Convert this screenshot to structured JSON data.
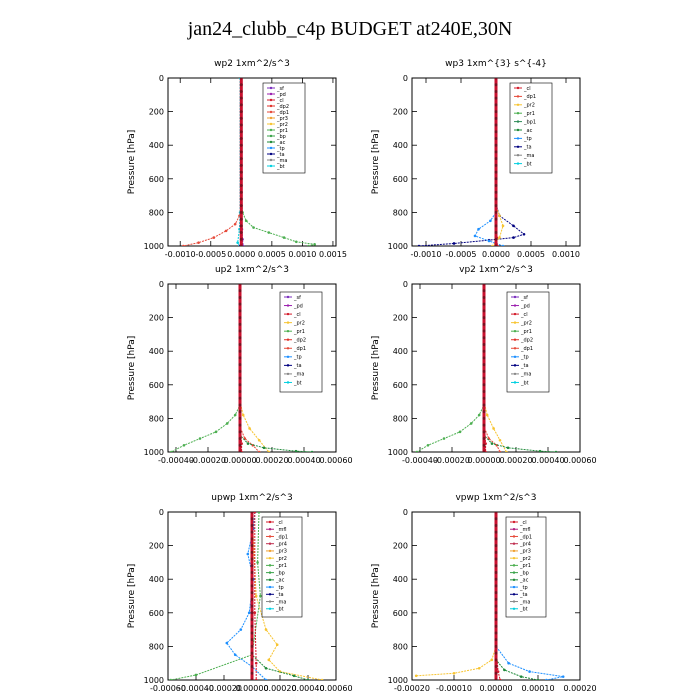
{
  "figure_title": "jan24_clubb_c4p  BUDGET at240E,30N",
  "colors": {
    "sf": "#7b2fbe",
    "pd": "#9b1fae",
    "cl": "#d41c2c",
    "dp2": "#e0322a",
    "dp1": "#e64a3a",
    "pr3": "#f0a030",
    "pr2": "#f7c431",
    "pr1": "#4caf50",
    "bp": "#3aa34a",
    "ac": "#1f8a3a",
    "tp": "#1e90ff",
    "ta": "#000080",
    "ma": "#888888",
    "bt": "#00d0e0",
    "mfl": "#b02080",
    "pr4": "#c03050",
    "bp1": "#2e8b57",
    "bt_line": "#c8102e"
  },
  "chart_data": [
    {
      "type": "line",
      "title": "wp2   1xm^2/s^3",
      "ylabel": "Pressure  [hPa]",
      "ylim": [
        1000,
        0
      ],
      "xlim": [
        -0.0012,
        0.00155
      ],
      "xticks": [
        "-0.0010",
        "-0.0005",
        "0.0000",
        "0.0005",
        "0.0010",
        "0.0015"
      ],
      "xtick_values": [
        -0.001,
        -0.0005,
        0.0,
        0.0005,
        0.001,
        0.0015
      ],
      "yticks": [
        0,
        200,
        400,
        600,
        800,
        1000
      ],
      "legend": [
        "_sf",
        "_pd",
        "_cl",
        "_dp2",
        "_dp1",
        "_pr3",
        "_pr2",
        "_pr1",
        "_bp",
        "_ac",
        "_tp",
        "_ta",
        "_ma",
        "_bt"
      ],
      "series": [
        {
          "key": "pr1",
          "x": [
            0,
            0,
            2e-05,
            8e-05,
            0.0002,
            0.00045,
            0.0007,
            0.0009,
            0.0012,
            0.0011
          ],
          "y": [
            0,
            700,
            800,
            850,
            890,
            920,
            950,
            975,
            990,
            1000
          ]
        },
        {
          "key": "dp1",
          "x": [
            0,
            0,
            -3e-05,
            -0.0001,
            -0.00025,
            -0.00045,
            -0.0007,
            -0.00095
          ],
          "y": [
            0,
            750,
            820,
            870,
            910,
            950,
            980,
            1000
          ]
        },
        {
          "key": "sf",
          "x": [
            0,
            0,
            1e-05,
            2e-05,
            3e-05
          ],
          "y": [
            0,
            800,
            900,
            960,
            1000
          ]
        },
        {
          "key": "bt",
          "x": [
            -2e-05,
            -2e-05,
            -3e-05,
            -6e-05,
            -3e-05
          ],
          "y": [
            0,
            800,
            900,
            980,
            1000
          ]
        },
        {
          "key": "ta",
          "x": [
            0,
            0,
            -2e-05
          ],
          "y": [
            0,
            950,
            1000
          ]
        }
      ]
    },
    {
      "type": "line",
      "title": "wp3   1xm^{3} s^{-4}",
      "ylabel": "Pressure  [hPa]",
      "ylim": [
        1000,
        0
      ],
      "xlim": [
        -0.0012,
        0.0012
      ],
      "xticks": [
        "-0.0010",
        "-0.0005",
        "0.0000",
        "0.0005",
        "0.0010"
      ],
      "xtick_values": [
        -0.001,
        -0.0005,
        0.0,
        0.0005,
        0.001
      ],
      "yticks": [
        0,
        200,
        400,
        600,
        800,
        1000
      ],
      "legend": [
        "_cl",
        "_dp1",
        "_pr2",
        "_pr1",
        "_bp1",
        "_ac",
        "_tp",
        "_ta",
        "_ma",
        "_bt"
      ],
      "series": [
        {
          "key": "ta",
          "x": [
            0,
            0,
            5e-05,
            0.00025,
            0.0004,
            0.00025,
            -0.0001,
            -0.0006,
            -0.0011
          ],
          "y": [
            0,
            750,
            820,
            880,
            930,
            950,
            965,
            985,
            1000
          ]
        },
        {
          "key": "tp",
          "x": [
            0,
            0,
            -8e-05,
            -0.00025,
            -0.0003,
            -0.0001,
            0.0001
          ],
          "y": [
            0,
            800,
            850,
            900,
            940,
            970,
            1000
          ]
        },
        {
          "key": "pr2",
          "x": [
            0,
            0,
            5e-05,
            0.0001,
            5e-05,
            -5e-05
          ],
          "y": [
            0,
            760,
            820,
            880,
            950,
            1000
          ]
        },
        {
          "key": "cl",
          "x": [
            0,
            0,
            1e-05,
            2e-05
          ],
          "y": [
            0,
            800,
            950,
            1000
          ]
        }
      ]
    },
    {
      "type": "line",
      "title": "up2   1xm^2/s^3",
      "ylabel": "Pressure  [hPa]",
      "ylim": [
        1000,
        0
      ],
      "xlim": [
        -0.00045,
        0.0006
      ],
      "xticks": [
        "-0.00040",
        "-0.00020",
        "0.00000",
        "0.00020",
        "0.00040",
        "0.00060"
      ],
      "xtick_values": [
        -0.0004,
        -0.0002,
        0.0,
        0.0002,
        0.0004,
        0.0006
      ],
      "yticks": [
        0,
        200,
        400,
        600,
        800,
        1000
      ],
      "legend": [
        "_sf",
        "_pd",
        "_cl",
        "_pr2",
        "_pr1",
        "_dp2",
        "_dp1",
        "_tp",
        "_ta",
        "_ma",
        "_bt"
      ],
      "series": [
        {
          "key": "pr1",
          "x": [
            0,
            0,
            -3e-05,
            -8e-05,
            -0.00015,
            -0.00025,
            -0.00035,
            -0.00043
          ],
          "y": [
            0,
            720,
            780,
            830,
            880,
            920,
            960,
            1000
          ]
        },
        {
          "key": "pr2",
          "x": [
            0,
            0,
            2e-05,
            6e-05,
            0.00012,
            0.00018
          ],
          "y": [
            0,
            700,
            780,
            860,
            930,
            1000
          ]
        },
        {
          "key": "dp1",
          "x": [
            0,
            0,
            3e-05,
            8e-05,
            0.00012
          ],
          "y": [
            0,
            850,
            920,
            960,
            1000
          ]
        },
        {
          "key": "ac",
          "x": [
            0,
            0,
            5e-05,
            0.00015,
            0.00035,
            0.00045
          ],
          "y": [
            0,
            900,
            950,
            975,
            995,
            1000
          ]
        },
        {
          "key": "cl",
          "x": [
            0,
            0,
            1e-05,
            1e-05
          ],
          "y": [
            0,
            800,
            950,
            1000
          ]
        }
      ]
    },
    {
      "type": "line",
      "title": "vp2   1xm^2/s^3",
      "ylabel": "Pressure  [hPa]",
      "ylim": [
        1000,
        0
      ],
      "xlim": [
        -0.00045,
        0.0006
      ],
      "xticks": [
        "-0.00040",
        "-0.00020",
        "0.00000",
        "0.00020",
        "0.00040",
        "0.00060"
      ],
      "xtick_values": [
        -0.0004,
        -0.0002,
        0.0,
        0.0002,
        0.0004,
        0.0006
      ],
      "yticks": [
        0,
        200,
        400,
        600,
        800,
        1000
      ],
      "legend": [
        "_sf",
        "_pd",
        "_cl",
        "_pr2",
        "_pr1",
        "_dp2",
        "_dp1",
        "_tp",
        "_ta",
        "_ma",
        "_bt"
      ],
      "series": [
        {
          "key": "pr1",
          "x": [
            0,
            0,
            -3e-05,
            -8e-05,
            -0.00015,
            -0.00025,
            -0.00035,
            -0.00042
          ],
          "y": [
            0,
            720,
            780,
            830,
            880,
            920,
            960,
            1000
          ]
        },
        {
          "key": "pr2",
          "x": [
            0,
            0,
            2e-05,
            6e-05,
            0.0001,
            0.00014
          ],
          "y": [
            0,
            700,
            780,
            860,
            930,
            1000
          ]
        },
        {
          "key": "dp1",
          "x": [
            0,
            0,
            3e-05,
            8e-05,
            0.0001
          ],
          "y": [
            0,
            850,
            920,
            960,
            1000
          ]
        },
        {
          "key": "ac",
          "x": [
            0,
            0,
            5e-05,
            0.00015,
            0.00035,
            0.00045
          ],
          "y": [
            0,
            900,
            950,
            975,
            995,
            1000
          ]
        },
        {
          "key": "cl",
          "x": [
            0,
            0,
            1e-05,
            1e-05
          ],
          "y": [
            0,
            800,
            950,
            1000
          ]
        }
      ]
    },
    {
      "type": "line",
      "title": "upwp   1xm^2/s^3",
      "ylabel": "Pressure  [hPa]",
      "ylim": [
        1000,
        0
      ],
      "xlim": [
        -0.0006,
        0.0006
      ],
      "xticks": [
        "-0.00060",
        "-0.00040",
        "-0.00020",
        "0.00000",
        "0.00020",
        "0.00040",
        "0.00060"
      ],
      "xtick_values": [
        -0.0006,
        -0.0004,
        -0.0002,
        0.0,
        0.0002,
        0.0004,
        0.0006
      ],
      "yticks": [
        0,
        200,
        400,
        600,
        800,
        1000
      ],
      "legend": [
        "_cl",
        "_mfl",
        "_dp1",
        "_pr4",
        "_pr3",
        "_pr2",
        "_pr1",
        "_bp",
        "_ac",
        "_tp",
        "_ta",
        "_ma",
        "_bt"
      ],
      "series": [
        {
          "key": "tp",
          "x": [
            2e-05,
            1e-05,
            -3e-05,
            1e-05,
            -2e-05,
            -8e-05,
            -0.00018,
            -0.00012,
            0.0,
            0.0001
          ],
          "y": [
            0,
            100,
            250,
            400,
            600,
            700,
            780,
            850,
            920,
            1000
          ]
        },
        {
          "key": "pr2",
          "x": [
            0,
            3e-05,
            0.0001,
            0.00018,
            0.00012,
            0.0002,
            0.0005
          ],
          "y": [
            0,
            500,
            700,
            790,
            880,
            950,
            1000
          ]
        },
        {
          "key": "pr1",
          "x": [
            5e-05,
            4e-05,
            6e-05,
            0.0,
            -0.0004,
            -0.00058
          ],
          "y": [
            0,
            300,
            500,
            850,
            970,
            1000
          ]
        },
        {
          "key": "ac",
          "x": [
            0,
            0,
            0.0001,
            0.0003,
            0.0004
          ],
          "y": [
            0,
            850,
            930,
            975,
            1000
          ]
        },
        {
          "key": "cl",
          "x": [
            2e-05,
            2e-05,
            3e-05,
            3e-05
          ],
          "y": [
            0,
            600,
            900,
            1000
          ]
        }
      ]
    },
    {
      "type": "line",
      "title": "vpwp   1xm^2/s^3",
      "ylabel": "Pressure  [hPa]",
      "ylim": [
        1000,
        0
      ],
      "xlim": [
        -0.0002,
        0.0002
      ],
      "xticks": [
        "-0.00020",
        "-0.00010",
        "0.00000",
        "0.00010",
        "0.00020"
      ],
      "xtick_values": [
        -0.0002,
        -0.0001,
        0.0,
        0.0001,
        0.0002
      ],
      "yticks": [
        0,
        200,
        400,
        600,
        800,
        1000
      ],
      "legend": [
        "_cl",
        "_mfl",
        "_dp1",
        "_pr4",
        "_pr3",
        "_pr2",
        "_pr1",
        "_bp",
        "_ac",
        "_tp",
        "_ta",
        "_ma",
        "_bt"
      ],
      "series": [
        {
          "key": "pr2",
          "x": [
            0,
            0,
            -1e-05,
            -4e-05,
            -0.0001,
            -0.00019
          ],
          "y": [
            0,
            800,
            880,
            930,
            960,
            975
          ]
        },
        {
          "key": "tp",
          "x": [
            0,
            0,
            3e-05,
            8e-05,
            0.00016,
            0.00012
          ],
          "y": [
            0,
            800,
            900,
            950,
            980,
            1000
          ]
        },
        {
          "key": "ac",
          "x": [
            0,
            0,
            2e-05,
            6e-05,
            0.0001
          ],
          "y": [
            0,
            880,
            940,
            980,
            1000
          ]
        },
        {
          "key": "cl",
          "x": [
            0,
            0,
            5e-06,
            1e-05
          ],
          "y": [
            0,
            800,
            950,
            1000
          ]
        }
      ]
    }
  ]
}
